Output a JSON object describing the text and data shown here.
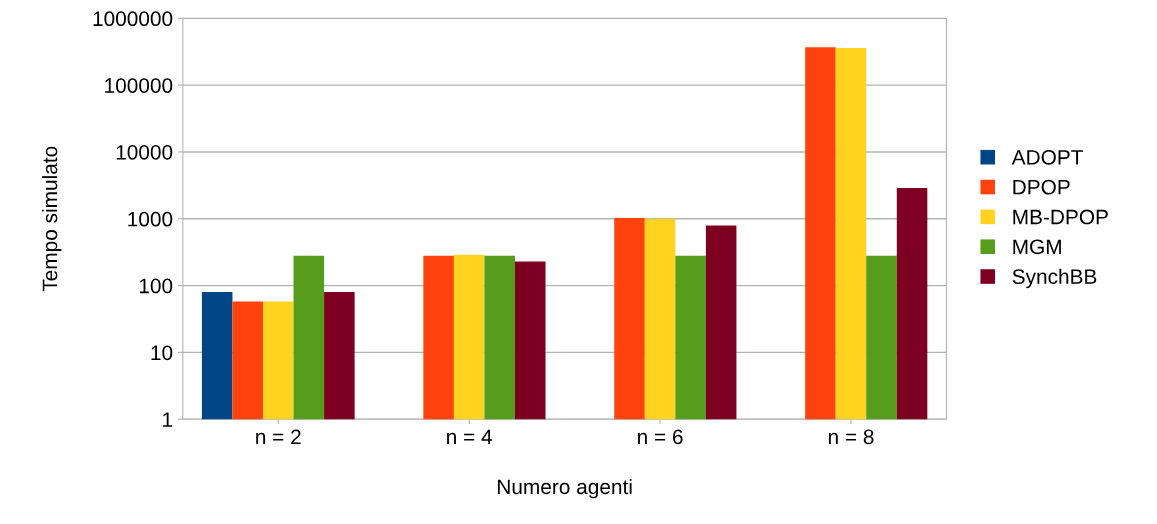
{
  "chart_data": {
    "type": "bar",
    "xlabel": "Numero agenti",
    "ylabel": "Tempo simulato",
    "categories": [
      "n = 2",
      "n = 4",
      "n = 6",
      "n = 8"
    ],
    "series": [
      {
        "name": "ADOPT",
        "color": "#004586",
        "values": [
          80,
          null,
          null,
          null
        ]
      },
      {
        "name": "DPOP",
        "color": "#ff420e",
        "values": [
          58,
          280,
          1030,
          370000
        ]
      },
      {
        "name": "MB-DPOP",
        "color": "#ffd320",
        "values": [
          58,
          290,
          1000,
          360000
        ]
      },
      {
        "name": "MGM",
        "color": "#579d1c",
        "values": [
          280,
          280,
          280,
          280
        ]
      },
      {
        "name": "SynchBB",
        "color": "#7e0021",
        "values": [
          80,
          230,
          790,
          2900
        ]
      }
    ],
    "log": true,
    "ylim": [
      1,
      1000000
    ],
    "yticks": [
      1,
      10,
      100,
      1000,
      10000,
      100000,
      1000000
    ],
    "grid": "y",
    "legend": "right"
  }
}
